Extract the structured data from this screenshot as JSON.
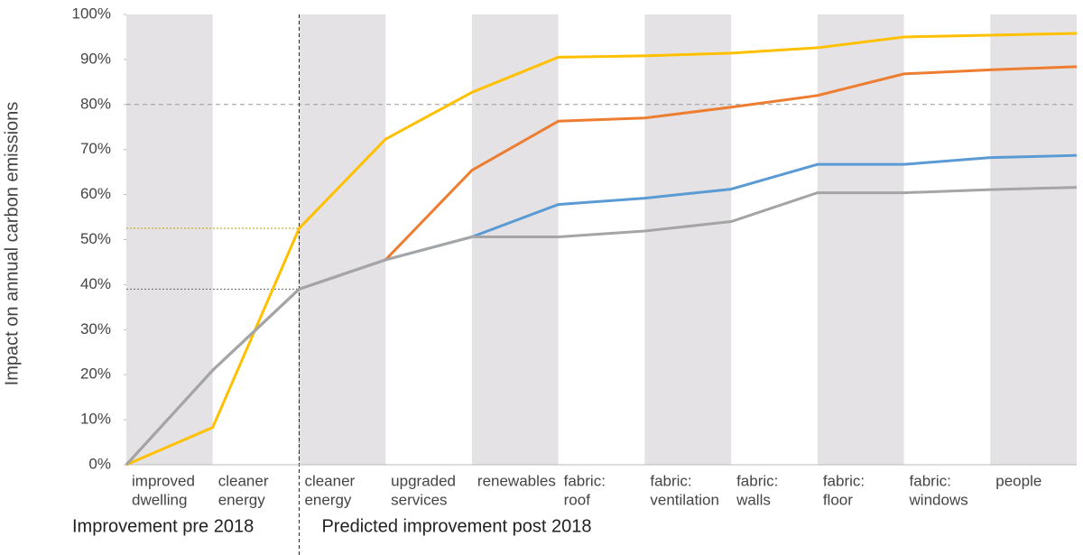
{
  "chart_data": {
    "type": "line",
    "y_label": "Impact on annual carbon emissions",
    "x": [
      0,
      1,
      2,
      3,
      4,
      5,
      6,
      7,
      8,
      9,
      10,
      11
    ],
    "xlim": [
      0,
      11
    ],
    "band_labels": [
      [
        "improved",
        "dwelling"
      ],
      [
        "cleaner",
        "energy"
      ],
      [
        "cleaner",
        "energy"
      ],
      [
        "upgraded",
        "services"
      ],
      [
        "renewables"
      ],
      [
        "fabric:",
        "roof"
      ],
      [
        "fabric:",
        "ventilation"
      ],
      [
        "fabric:",
        "walls"
      ],
      [
        "fabric:",
        "floor"
      ],
      [
        "fabric:",
        "windows"
      ],
      [
        "people"
      ]
    ],
    "band_color": "#e4e2e4",
    "groups": [
      {
        "label": "Improvement pre 2018",
        "start": 0
      },
      {
        "label": "Predicted improvement post 2018",
        "start": 2
      }
    ],
    "divider_x": 2,
    "reference_y": 80,
    "ylim": [
      0,
      100
    ],
    "yticks": [
      {
        "value": 0,
        "label": "0%"
      },
      {
        "value": 10,
        "label": "10%"
      },
      {
        "value": 20,
        "label": "20%"
      },
      {
        "value": 30,
        "label": "30%"
      },
      {
        "value": 40,
        "label": "40%"
      },
      {
        "value": 50,
        "label": "50%"
      },
      {
        "value": 60,
        "label": "60%"
      },
      {
        "value": 70,
        "label": "70%"
      },
      {
        "value": 80,
        "label": "80%"
      },
      {
        "value": 90,
        "label": "90%"
      },
      {
        "value": 100,
        "label": "100%"
      }
    ],
    "series": [
      {
        "color": "#ffc000",
        "values": [
          0,
          8.3,
          52.5,
          72.3,
          82.7,
          90.5,
          90.8,
          91.4,
          92.6,
          95,
          95.4,
          95.8
        ]
      },
      {
        "color": "#ed7d31",
        "values": [
          0,
          21,
          39,
          45.5,
          65.4,
          76.3,
          77,
          79.4,
          82,
          86.8,
          87.7,
          88.4
        ]
      },
      {
        "color": "#5b9bd5",
        "values": [
          0,
          21,
          39,
          45.5,
          50.6,
          57.8,
          59.2,
          61.2,
          66.7,
          66.7,
          68.2,
          68.7
        ]
      },
      {
        "color": "#a5a5a5",
        "values": [
          0,
          21,
          39,
          45.5,
          50.6,
          50.6,
          51.9,
          54,
          60.4,
          60.4,
          61.1,
          61.6
        ]
      }
    ]
  }
}
